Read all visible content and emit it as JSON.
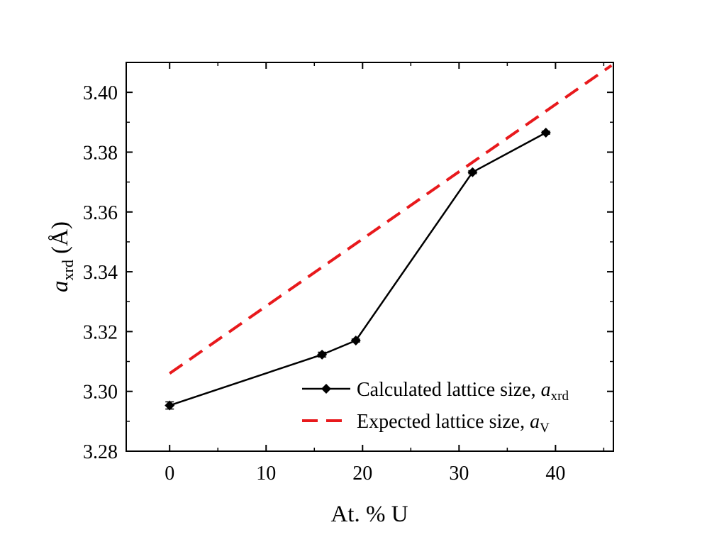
{
  "chart_data": {
    "type": "line",
    "xlabel": "At. % U",
    "ylabel": {
      "main": "a",
      "sub": "xrd",
      "unit": " (Å)"
    },
    "xlim": [
      -4.5,
      46
    ],
    "ylim": [
      3.28,
      3.41
    ],
    "xticks": [
      0,
      10,
      20,
      30,
      40
    ],
    "xtick_labels": [
      "0",
      "10",
      "20",
      "30",
      "40"
    ],
    "yticks": [
      3.28,
      3.3,
      3.32,
      3.34,
      3.36,
      3.38,
      3.4
    ],
    "ytick_labels": [
      "3.28",
      "3.30",
      "3.32",
      "3.34",
      "3.36",
      "3.38",
      "3.40"
    ],
    "grid": false,
    "legend_position": "bottom-right",
    "series": [
      {
        "legend_text": "Calculated lattice size, ",
        "legend_italic": "a",
        "legend_sub": "xrd",
        "style": "solid-with-diamond-markers",
        "color": "#000000",
        "x": [
          0,
          15.8,
          19.3,
          31.4,
          39.0
        ],
        "y": [
          3.2953,
          3.3123,
          3.317,
          3.3733,
          3.3865
        ],
        "yerr": [
          0.0012,
          0.0008,
          0.0005,
          0.0005,
          0.0005
        ]
      },
      {
        "legend_text": "Expected lattice size, ",
        "legend_italic": "a",
        "legend_sub": "V",
        "style": "dashed",
        "color": "#e8191c",
        "x": [
          0,
          45.8
        ],
        "y": [
          3.306,
          3.409
        ]
      }
    ]
  }
}
